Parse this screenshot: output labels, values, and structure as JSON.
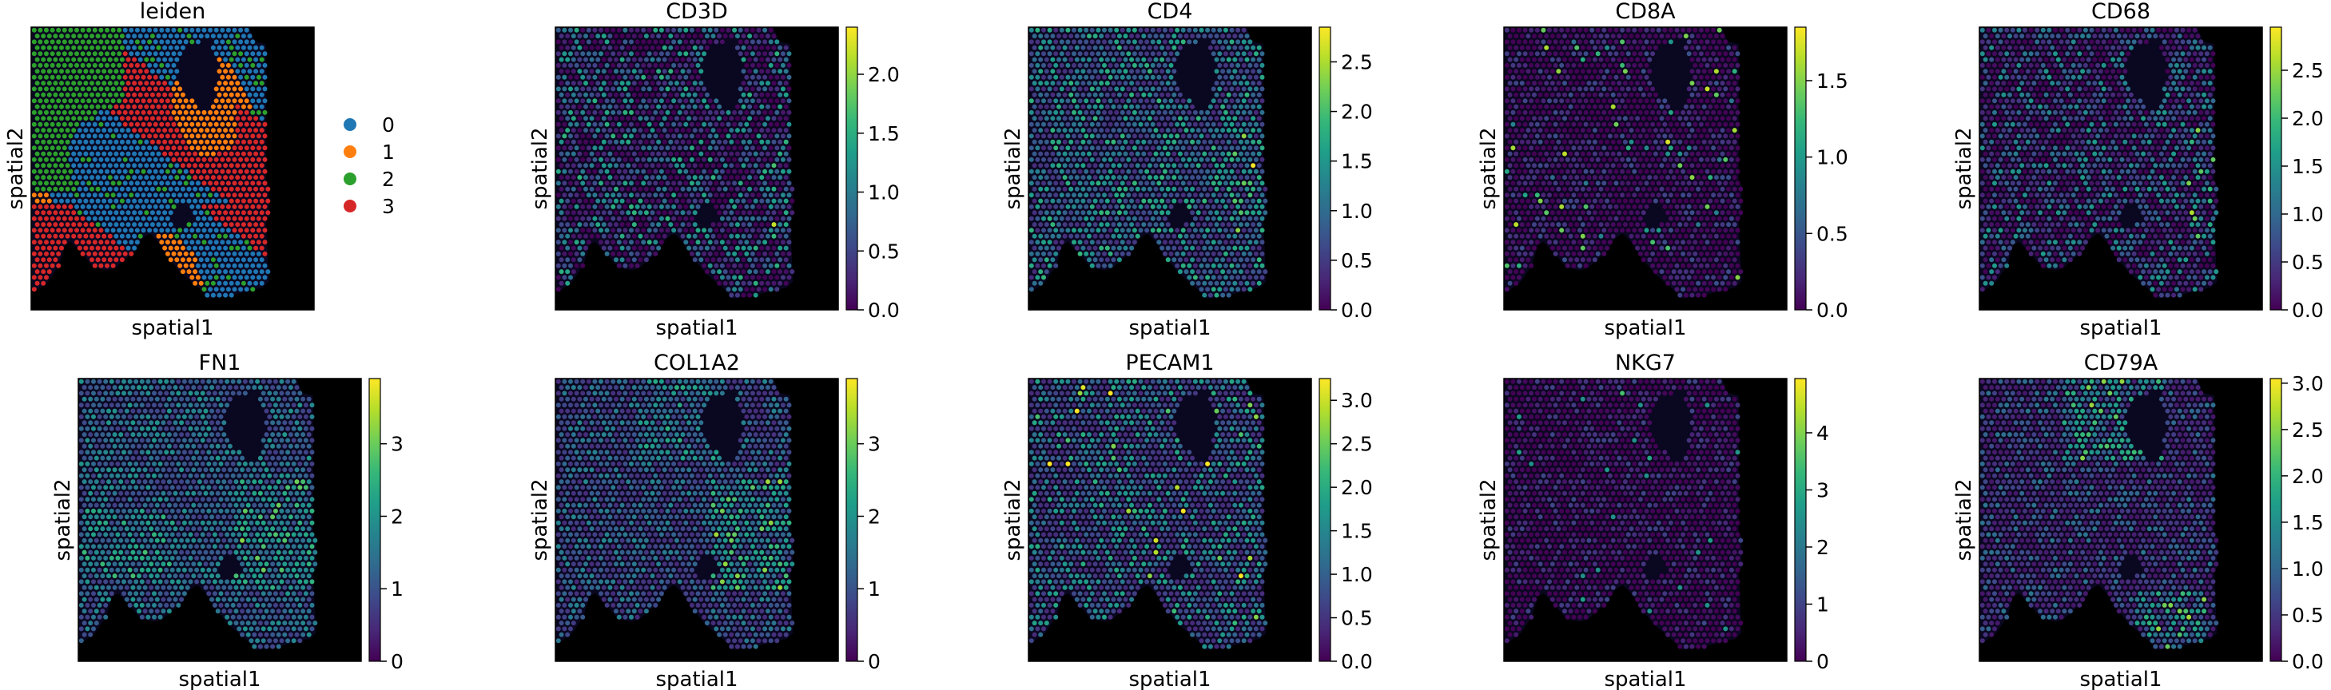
{
  "chart_data": [
    {
      "type": "scatter",
      "title": "leiden",
      "xlabel": "spatial1",
      "ylabel": "spatial2",
      "legend": {
        "placement": "right",
        "entries": [
          {
            "label": "0",
            "color": "#1f77b4"
          },
          {
            "label": "1",
            "color": "#ff7f0e"
          },
          {
            "label": "2",
            "color": "#2ca02c"
          },
          {
            "label": "3",
            "color": "#d62728"
          }
        ]
      },
      "categories": [
        "0",
        "1",
        "2",
        "3"
      ],
      "grid": false
    },
    {
      "type": "scatter",
      "title": "CD3D",
      "xlabel": "spatial1",
      "ylabel": "spatial2",
      "colormap": "viridis",
      "grid": false,
      "colorbar": {
        "vmin": 0,
        "vmax": 2.4,
        "ticks": [
          0.0,
          0.5,
          1.0,
          1.5,
          2.0
        ],
        "tick_labels": [
          "0.0",
          "0.5",
          "1.0",
          "1.5",
          "2.0"
        ]
      }
    },
    {
      "type": "scatter",
      "title": "CD4",
      "xlabel": "spatial1",
      "ylabel": "spatial2",
      "colormap": "viridis",
      "grid": false,
      "colorbar": {
        "vmin": 0,
        "vmax": 2.85,
        "ticks": [
          0.0,
          0.5,
          1.0,
          1.5,
          2.0,
          2.5
        ],
        "tick_labels": [
          "0.0",
          "0.5",
          "1.0",
          "1.5",
          "2.0",
          "2.5"
        ]
      }
    },
    {
      "type": "scatter",
      "title": "CD8A",
      "xlabel": "spatial1",
      "ylabel": "spatial2",
      "colormap": "viridis",
      "grid": false,
      "colorbar": {
        "vmin": 0,
        "vmax": 1.85,
        "ticks": [
          0.0,
          0.5,
          1.0,
          1.5
        ],
        "tick_labels": [
          "0.0",
          "0.5",
          "1.0",
          "1.5"
        ]
      }
    },
    {
      "type": "scatter",
      "title": "CD68",
      "xlabel": "spatial1",
      "ylabel": "spatial2",
      "colormap": "viridis",
      "grid": false,
      "colorbar": {
        "vmin": 0,
        "vmax": 2.95,
        "ticks": [
          0.0,
          0.5,
          1.0,
          1.5,
          2.0,
          2.5
        ],
        "tick_labels": [
          "0.0",
          "0.5",
          "1.0",
          "1.5",
          "2.0",
          "2.5"
        ]
      }
    },
    {
      "type": "scatter",
      "title": "FN1",
      "xlabel": "spatial1",
      "ylabel": "spatial2",
      "colormap": "viridis",
      "grid": false,
      "colorbar": {
        "vmin": 0,
        "vmax": 3.9,
        "ticks": [
          0,
          1,
          2,
          3
        ],
        "tick_labels": [
          "0",
          "1",
          "2",
          "3"
        ]
      }
    },
    {
      "type": "scatter",
      "title": "COL1A2",
      "xlabel": "spatial1",
      "ylabel": "spatial2",
      "colormap": "viridis",
      "grid": false,
      "colorbar": {
        "vmin": 0,
        "vmax": 3.9,
        "ticks": [
          0,
          1,
          2,
          3
        ],
        "tick_labels": [
          "0",
          "1",
          "2",
          "3"
        ]
      }
    },
    {
      "type": "scatter",
      "title": "PECAM1",
      "xlabel": "spatial1",
      "ylabel": "spatial2",
      "colormap": "viridis",
      "grid": false,
      "colorbar": {
        "vmin": 0,
        "vmax": 3.25,
        "ticks": [
          0.0,
          0.5,
          1.0,
          1.5,
          2.0,
          2.5,
          3.0
        ],
        "tick_labels": [
          "0.0",
          "0.5",
          "1.0",
          "1.5",
          "2.0",
          "2.5",
          "3.0"
        ]
      }
    },
    {
      "type": "scatter",
      "title": "NKG7",
      "xlabel": "spatial1",
      "ylabel": "spatial2",
      "colormap": "viridis",
      "grid": false,
      "colorbar": {
        "vmin": 0,
        "vmax": 4.95,
        "ticks": [
          0,
          1,
          2,
          3,
          4
        ],
        "tick_labels": [
          "0",
          "1",
          "2",
          "3",
          "4"
        ]
      }
    },
    {
      "type": "scatter",
      "title": "CD79A",
      "xlabel": "spatial1",
      "ylabel": "spatial2",
      "colormap": "viridis",
      "grid": false,
      "colorbar": {
        "vmin": 0,
        "vmax": 3.05,
        "ticks": [
          0.0,
          0.5,
          1.0,
          1.5,
          2.0,
          2.5,
          3.0
        ],
        "tick_labels": [
          "0.0",
          "0.5",
          "1.0",
          "1.5",
          "2.0",
          "2.5",
          "3.0"
        ]
      }
    }
  ]
}
